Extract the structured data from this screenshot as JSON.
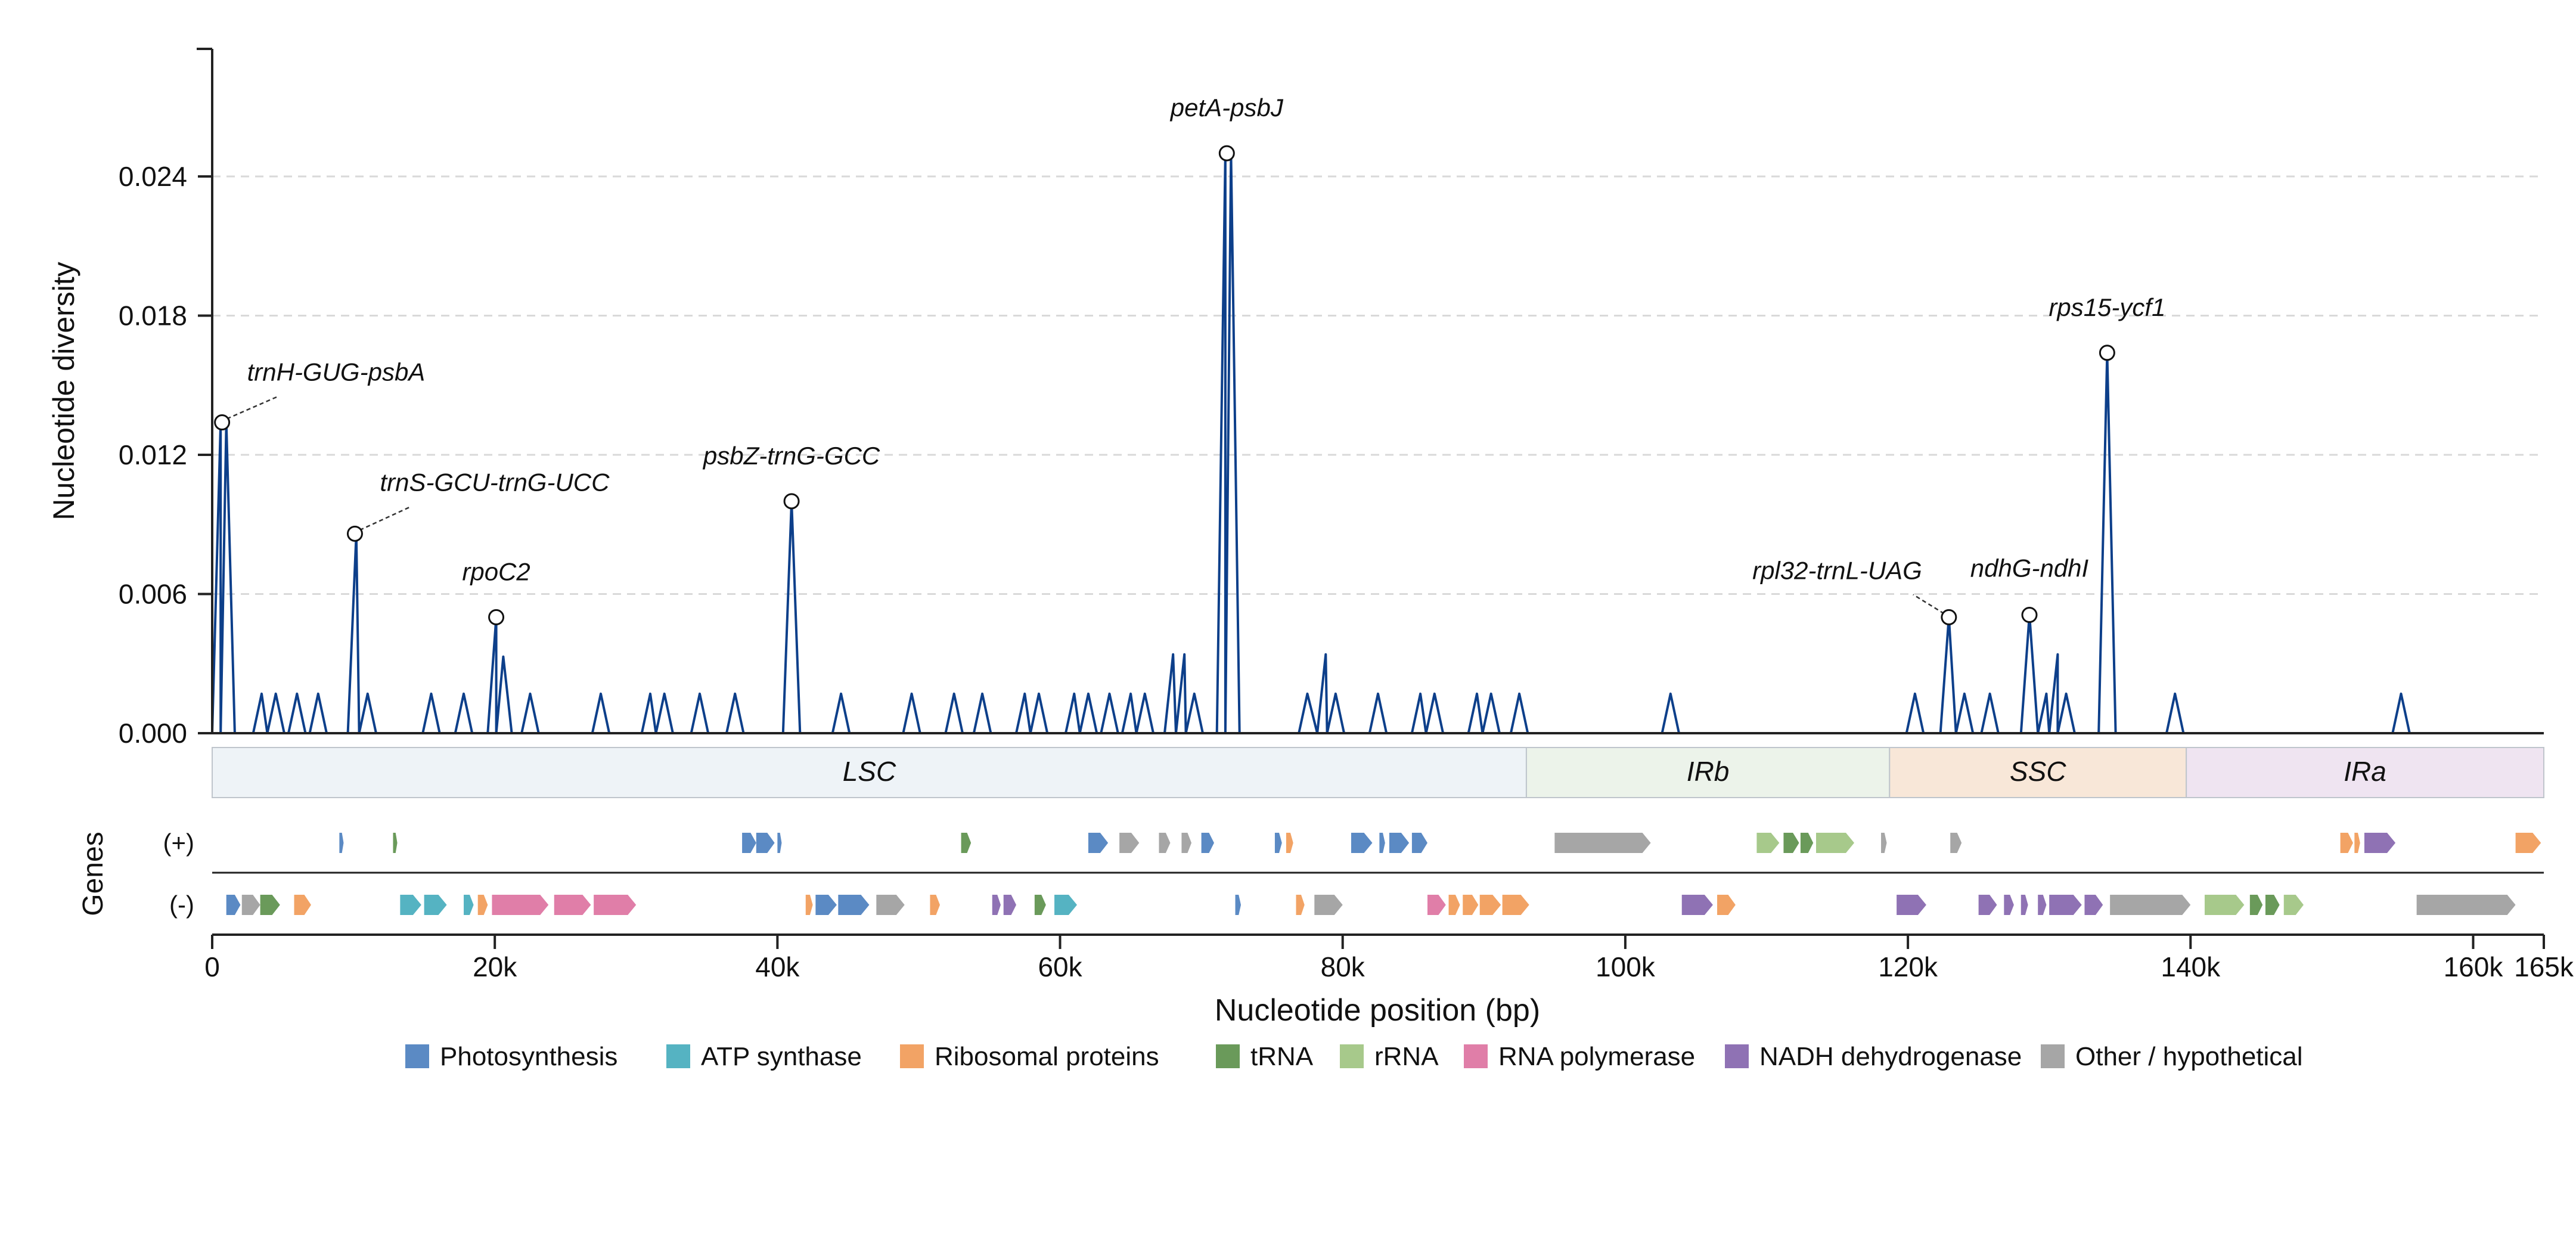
{
  "chart_data": {
    "type": "line",
    "ylabel": "Nucleotide diversity",
    "xlabel": "Nucleotide position (bp)",
    "ylim": [
      0,
      0.0295
    ],
    "xlim": [
      0,
      165000
    ],
    "yticks": [
      0,
      0.006,
      0.012,
      0.018,
      0.024
    ],
    "ytick_labels": [
      "0.000",
      "0.006",
      "0.012",
      "0.018",
      "0.024"
    ],
    "xticks": [
      0,
      20000,
      40000,
      60000,
      80000,
      100000,
      120000,
      140000,
      160000,
      165000
    ],
    "xtick_labels": [
      "0",
      "20k",
      "40k",
      "60k",
      "80k",
      "100k",
      "120k",
      "140k",
      "160k",
      "165k"
    ],
    "grid": "horizontal dashed at y ticks",
    "line_color": "#0d3f8a",
    "peaks": [
      {
        "x": 600,
        "y": 0.0134
      },
      {
        "x": 1000,
        "y": 0.0134
      },
      {
        "x": 3500,
        "y": 0.0017
      },
      {
        "x": 4500,
        "y": 0.0017
      },
      {
        "x": 6000,
        "y": 0.0017
      },
      {
        "x": 7500,
        "y": 0.0017
      },
      {
        "x": 10200,
        "y": 0.0086
      },
      {
        "x": 11000,
        "y": 0.0017
      },
      {
        "x": 15500,
        "y": 0.0017
      },
      {
        "x": 17800,
        "y": 0.0017
      },
      {
        "x": 20100,
        "y": 0.005
      },
      {
        "x": 20600,
        "y": 0.0033
      },
      {
        "x": 22500,
        "y": 0.0017
      },
      {
        "x": 27500,
        "y": 0.0017
      },
      {
        "x": 31000,
        "y": 0.0017
      },
      {
        "x": 32000,
        "y": 0.0017
      },
      {
        "x": 34500,
        "y": 0.0017
      },
      {
        "x": 37000,
        "y": 0.0017
      },
      {
        "x": 41000,
        "y": 0.01
      },
      {
        "x": 44500,
        "y": 0.0017
      },
      {
        "x": 49500,
        "y": 0.0017
      },
      {
        "x": 52500,
        "y": 0.0017
      },
      {
        "x": 54500,
        "y": 0.0017
      },
      {
        "x": 57500,
        "y": 0.0017
      },
      {
        "x": 58500,
        "y": 0.0017
      },
      {
        "x": 61000,
        "y": 0.0017
      },
      {
        "x": 62000,
        "y": 0.0017
      },
      {
        "x": 63500,
        "y": 0.0017
      },
      {
        "x": 65000,
        "y": 0.0017
      },
      {
        "x": 66000,
        "y": 0.0017
      },
      {
        "x": 68000,
        "y": 0.0034
      },
      {
        "x": 68800,
        "y": 0.0034
      },
      {
        "x": 69500,
        "y": 0.0017
      },
      {
        "x": 71700,
        "y": 0.025
      },
      {
        "x": 72100,
        "y": 0.025
      },
      {
        "x": 77500,
        "y": 0.0017
      },
      {
        "x": 78800,
        "y": 0.0034
      },
      {
        "x": 79500,
        "y": 0.0017
      },
      {
        "x": 82500,
        "y": 0.0017
      },
      {
        "x": 85500,
        "y": 0.0017
      },
      {
        "x": 86500,
        "y": 0.0017
      },
      {
        "x": 89500,
        "y": 0.0017
      },
      {
        "x": 90500,
        "y": 0.0017
      },
      {
        "x": 92500,
        "y": 0.0017
      },
      {
        "x": 103200,
        "y": 0.0017
      },
      {
        "x": 120500,
        "y": 0.0017
      },
      {
        "x": 122900,
        "y": 0.005
      },
      {
        "x": 124000,
        "y": 0.0017
      },
      {
        "x": 125800,
        "y": 0.0017
      },
      {
        "x": 128600,
        "y": 0.0051
      },
      {
        "x": 129800,
        "y": 0.0017
      },
      {
        "x": 130600,
        "y": 0.0034
      },
      {
        "x": 131200,
        "y": 0.0017
      },
      {
        "x": 134100,
        "y": 0.0164
      },
      {
        "x": 138900,
        "y": 0.0017
      },
      {
        "x": 154900,
        "y": 0.0017
      }
    ],
    "annotations": [
      {
        "label": "trnH-GUG-psbA",
        "x": 700,
        "y": 0.0134
      },
      {
        "label": "trnS-GCU-trnG-UCC",
        "x": 10100,
        "y": 0.0086
      },
      {
        "label": "rpoC2",
        "x": 20100,
        "y": 0.005
      },
      {
        "label": "psbZ-trnG-GCC",
        "x": 41000,
        "y": 0.01
      },
      {
        "label": "petA-psbJ",
        "x": 71800,
        "y": 0.025
      },
      {
        "label": "rpl32-trnL-UAG",
        "x": 122900,
        "y": 0.005
      },
      {
        "label": "ndhG-ndhI",
        "x": 128600,
        "y": 0.0051
      },
      {
        "label": "rps15-ycf1",
        "x": 134100,
        "y": 0.0164
      }
    ],
    "regions": [
      {
        "name": "LSC",
        "start": 0,
        "end": 93000,
        "color": "#eef3f7"
      },
      {
        "name": "IRb",
        "start": 93000,
        "end": 118700,
        "color": "#ecf3ea"
      },
      {
        "name": "SSC",
        "start": 118700,
        "end": 139700,
        "color": "#f8e7d8"
      },
      {
        "name": "IRa",
        "start": 139700,
        "end": 165000,
        "color": "#efe4f1"
      }
    ],
    "genes_axis_label": "Genes",
    "strand_labels": [
      "(+)",
      "(-)"
    ],
    "legend": [
      {
        "key": "photo",
        "label": "Photosynthesis",
        "color": "#5b8ac4"
      },
      {
        "key": "atp",
        "label": "ATP synthase",
        "color": "#55b3c2"
      },
      {
        "key": "ribo",
        "label": "Ribosomal proteins",
        "color": "#f2a365"
      },
      {
        "key": "trna",
        "label": "tRNA",
        "color": "#6a9a5a"
      },
      {
        "key": "rrna",
        "label": "rRNA",
        "color": "#a7c98b"
      },
      {
        "key": "rnap",
        "label": "RNA polymerase",
        "color": "#e07ea8"
      },
      {
        "key": "ndh",
        "label": "NADH dehydrogenase",
        "color": "#8f72b4"
      },
      {
        "key": "other",
        "label": "Other / hypothetical",
        "color": "#a6a6a6"
      }
    ],
    "legend_placement": "bottom",
    "genes_plus": [
      {
        "s": 9000,
        "e": 9300,
        "c": "photo"
      },
      {
        "s": 12800,
        "e": 13100,
        "c": "trna"
      },
      {
        "s": 37500,
        "e": 38500,
        "c": "photo"
      },
      {
        "s": 38500,
        "e": 39800,
        "c": "photo"
      },
      {
        "s": 40000,
        "e": 40300,
        "c": "photo"
      },
      {
        "s": 53000,
        "e": 53700,
        "c": "trna"
      },
      {
        "s": 62000,
        "e": 63400,
        "c": "photo"
      },
      {
        "s": 64200,
        "e": 65600,
        "c": "other"
      },
      {
        "s": 67000,
        "e": 67800,
        "c": "other"
      },
      {
        "s": 68600,
        "e": 69300,
        "c": "other"
      },
      {
        "s": 70000,
        "e": 70900,
        "c": "photo"
      },
      {
        "s": 75200,
        "e": 75700,
        "c": "photo"
      },
      {
        "s": 76000,
        "e": 76500,
        "c": "ribo"
      },
      {
        "s": 80600,
        "e": 82100,
        "c": "photo"
      },
      {
        "s": 82600,
        "e": 83000,
        "c": "photo"
      },
      {
        "s": 83300,
        "e": 84700,
        "c": "photo"
      },
      {
        "s": 84900,
        "e": 86000,
        "c": "photo"
      },
      {
        "s": 95000,
        "e": 101800,
        "c": "other"
      },
      {
        "s": 109300,
        "e": 110900,
        "c": "rrna"
      },
      {
        "s": 111200,
        "e": 112300,
        "c": "trna"
      },
      {
        "s": 112400,
        "e": 113300,
        "c": "trna"
      },
      {
        "s": 113500,
        "e": 116200,
        "c": "rrna"
      },
      {
        "s": 118100,
        "e": 118500,
        "c": "other"
      },
      {
        "s": 123000,
        "e": 123800,
        "c": "other"
      },
      {
        "s": 150600,
        "e": 151500,
        "c": "ribo"
      },
      {
        "s": 151600,
        "e": 152000,
        "c": "ribo"
      },
      {
        "s": 152300,
        "e": 154500,
        "c": "ndh"
      },
      {
        "s": 163000,
        "e": 164800,
        "c": "ribo"
      }
    ],
    "genes_minus": [
      {
        "s": 1000,
        "e": 2000,
        "c": "photo"
      },
      {
        "s": 2100,
        "e": 3400,
        "c": "other"
      },
      {
        "s": 3400,
        "e": 4800,
        "c": "trna"
      },
      {
        "s": 5800,
        "e": 7000,
        "c": "ribo"
      },
      {
        "s": 13300,
        "e": 14800,
        "c": "atp"
      },
      {
        "s": 15000,
        "e": 16600,
        "c": "atp"
      },
      {
        "s": 17800,
        "e": 18500,
        "c": "atp"
      },
      {
        "s": 18800,
        "e": 19500,
        "c": "ribo"
      },
      {
        "s": 19800,
        "e": 23800,
        "c": "rnap"
      },
      {
        "s": 24200,
        "e": 26800,
        "c": "rnap"
      },
      {
        "s": 27000,
        "e": 30000,
        "c": "rnap"
      },
      {
        "s": 42000,
        "e": 42500,
        "c": "ribo"
      },
      {
        "s": 42700,
        "e": 44200,
        "c": "photo"
      },
      {
        "s": 44300,
        "e": 46500,
        "c": "photo"
      },
      {
        "s": 47000,
        "e": 49000,
        "c": "other"
      },
      {
        "s": 50800,
        "e": 51500,
        "c": "ribo"
      },
      {
        "s": 55200,
        "e": 55800,
        "c": "ndh"
      },
      {
        "s": 56000,
        "e": 56900,
        "c": "ndh"
      },
      {
        "s": 58200,
        "e": 59000,
        "c": "trna"
      },
      {
        "s": 59600,
        "e": 61200,
        "c": "atp"
      },
      {
        "s": 72400,
        "e": 72800,
        "c": "photo"
      },
      {
        "s": 76700,
        "e": 77300,
        "c": "ribo"
      },
      {
        "s": 78000,
        "e": 80000,
        "c": "other"
      },
      {
        "s": 86000,
        "e": 87300,
        "c": "rnap"
      },
      {
        "s": 87500,
        "e": 88300,
        "c": "ribo"
      },
      {
        "s": 88500,
        "e": 89600,
        "c": "ribo"
      },
      {
        "s": 89700,
        "e": 91200,
        "c": "ribo"
      },
      {
        "s": 91300,
        "e": 93200,
        "c": "ribo"
      },
      {
        "s": 104000,
        "e": 106200,
        "c": "ndh"
      },
      {
        "s": 106500,
        "e": 107800,
        "c": "ribo"
      },
      {
        "s": 119200,
        "e": 121300,
        "c": "ndh"
      },
      {
        "s": 125000,
        "e": 126300,
        "c": "ndh"
      },
      {
        "s": 126800,
        "e": 127500,
        "c": "ndh"
      },
      {
        "s": 128000,
        "e": 128500,
        "c": "ndh"
      },
      {
        "s": 129200,
        "e": 129800,
        "c": "ndh"
      },
      {
        "s": 130000,
        "e": 132300,
        "c": "ndh"
      },
      {
        "s": 132500,
        "e": 133800,
        "c": "ndh"
      },
      {
        "s": 134300,
        "e": 140000,
        "c": "other"
      },
      {
        "s": 141000,
        "e": 143800,
        "c": "rrna"
      },
      {
        "s": 144200,
        "e": 145100,
        "c": "trna"
      },
      {
        "s": 145300,
        "e": 146300,
        "c": "trna"
      },
      {
        "s": 146600,
        "e": 148000,
        "c": "rrna"
      },
      {
        "s": 156000,
        "e": 163000,
        "c": "other"
      }
    ]
  }
}
